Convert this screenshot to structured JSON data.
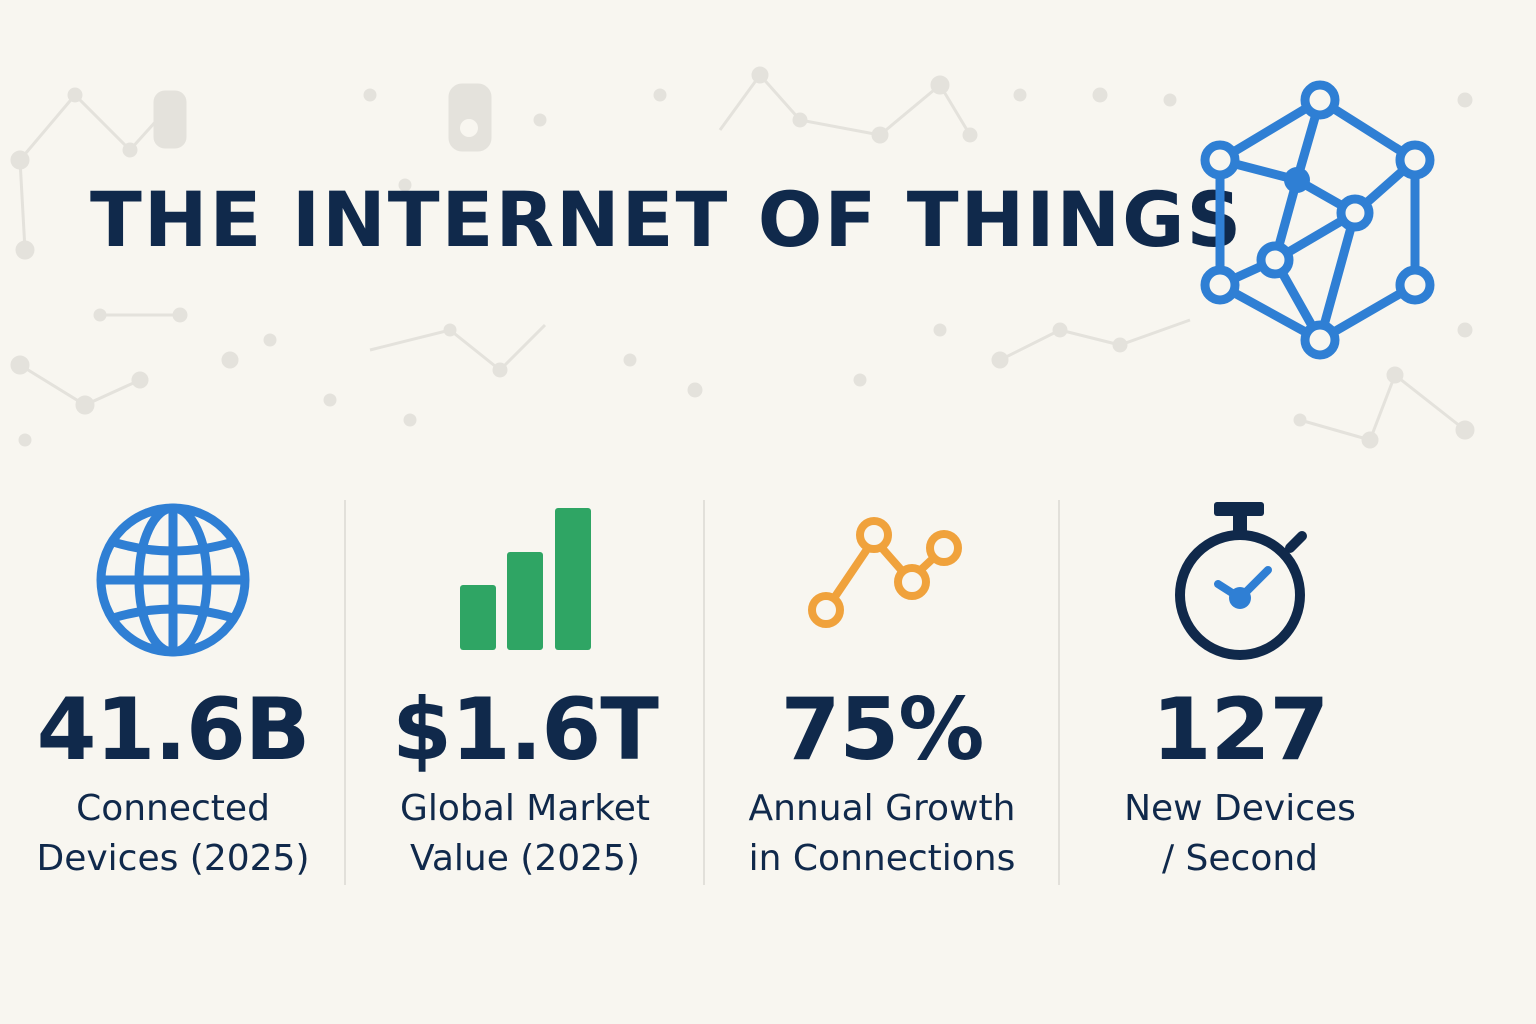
{
  "title": "THE INTERNET OF THINGS",
  "colors": {
    "navy": "#10294b",
    "blue": "#2f7fd4",
    "green": "#2fa564",
    "orange": "#f0a23c",
    "background": "#f8f6f0"
  },
  "hero_icon": "iot-network-icon",
  "stats": [
    {
      "icon": "globe-icon",
      "value": "41.6B",
      "label": "Connected\nDevices (2025)"
    },
    {
      "icon": "bar-chart-icon",
      "value": "$1.6T",
      "label": "Global Market\nValue (2025)"
    },
    {
      "icon": "line-growth-icon",
      "value": "75%",
      "label": "Annual Growth\nin Connections"
    },
    {
      "icon": "stopwatch-icon",
      "value": "127",
      "label": "New Devices\n/ Second"
    }
  ]
}
